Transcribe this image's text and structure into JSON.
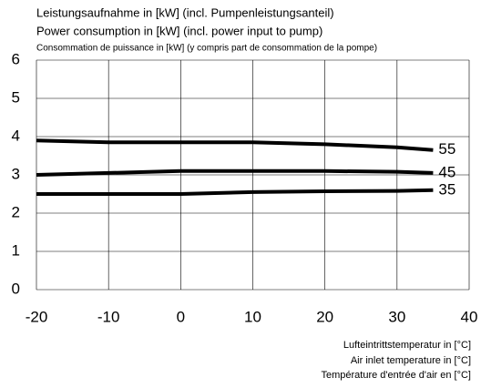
{
  "chart_data": {
    "type": "line",
    "title": [
      "Leistungsaufnahme in [kW] (incl. Pumpenleistungsanteil)",
      "Power consumption in [kW] (incl. power input to pump)",
      "Consommation de puissance in [kW] (y compris part de consommation de la pompe)"
    ],
    "xlabel": [
      "Lufteintrittstemperatur in [°C]",
      "Air inlet temperature in [°C]",
      "Température d'entrée d'air en [°C]"
    ],
    "x": [
      -20,
      -10,
      0,
      10,
      20,
      30,
      35
    ],
    "series": [
      {
        "name": "55",
        "color": "#000000",
        "values": [
          3.9,
          3.85,
          3.85,
          3.85,
          3.8,
          3.72,
          3.65
        ]
      },
      {
        "name": "45",
        "color": "#000000",
        "values": [
          3.0,
          3.05,
          3.1,
          3.1,
          3.1,
          3.08,
          3.05
        ]
      },
      {
        "name": "35",
        "color": "#000000",
        "values": [
          2.5,
          2.5,
          2.5,
          2.55,
          2.57,
          2.58,
          2.6
        ]
      }
    ],
    "xlim": [
      -20,
      40
    ],
    "xticks": [
      -20,
      -10,
      0,
      10,
      20,
      30,
      40
    ],
    "ylim": [
      0,
      6
    ],
    "yticks": [
      0,
      1,
      2,
      3,
      4,
      5,
      6
    ],
    "grid": true
  }
}
